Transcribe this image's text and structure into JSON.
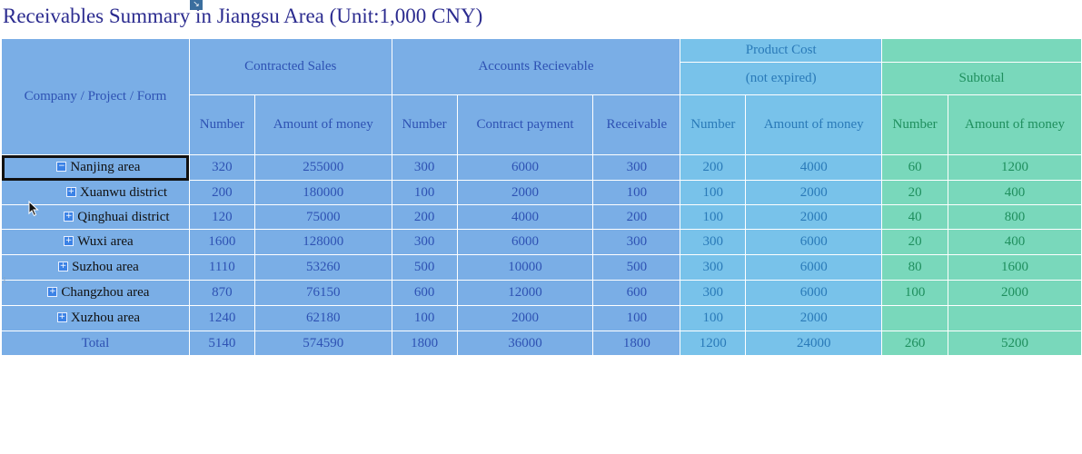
{
  "title": "Receivables Summary in Jiangsu Area (Unit:1,000 CNY)",
  "icons": {
    "title_icon": "resize-corner-icon",
    "toggle_expanded": "minus-box-icon",
    "toggle_collapsed": "plus-box-icon",
    "cursor": "mouse-pointer-icon"
  },
  "colors": {
    "title": "#2b2b8f",
    "blue_header": "#7aaee6",
    "cyan_header": "#78c2ea",
    "green_header": "#79d8bb"
  },
  "header": {
    "company": "Company / Project / Form",
    "contracted_sales": "Contracted Sales",
    "accounts_receivable": "Accounts Recievable",
    "product_cost": "Product Cost",
    "not_expired": "(not expired)",
    "subtotal": "Subtotal",
    "sub": {
      "cs_number": "Number",
      "cs_amount": "Amount of money",
      "ar_number": "Number",
      "ar_contract": "Contract payment",
      "ar_receivable": "Receivable",
      "pc_number": "Number",
      "pc_amount": "Amount of money",
      "st_number": "Number",
      "st_amount": "Amount of money"
    }
  },
  "rows": [
    {
      "name": "Nanjing area",
      "toggle": "−",
      "cs_number": "320",
      "cs_amount": "255000",
      "ar_number": "300",
      "ar_contract": "6000",
      "ar_receivable": "300",
      "pc_number": "200",
      "pc_amount": "4000",
      "st_number": "60",
      "st_amount": "1200"
    },
    {
      "name": "Xuanwu district",
      "toggle": "+",
      "cs_number": "200",
      "cs_amount": "180000",
      "ar_number": "100",
      "ar_contract": "2000",
      "ar_receivable": "100",
      "pc_number": "100",
      "pc_amount": "2000",
      "st_number": "20",
      "st_amount": "400"
    },
    {
      "name": "Qinghuai district",
      "toggle": "+",
      "cs_number": "120",
      "cs_amount": "75000",
      "ar_number": "200",
      "ar_contract": "4000",
      "ar_receivable": "200",
      "pc_number": "100",
      "pc_amount": "2000",
      "st_number": "40",
      "st_amount": "800"
    },
    {
      "name": "Wuxi area",
      "toggle": "+",
      "cs_number": "1600",
      "cs_amount": "128000",
      "ar_number": "300",
      "ar_contract": "6000",
      "ar_receivable": "300",
      "pc_number": "300",
      "pc_amount": "6000",
      "st_number": "20",
      "st_amount": "400"
    },
    {
      "name": "Suzhou area",
      "toggle": "+",
      "cs_number": "1110",
      "cs_amount": "53260",
      "ar_number": "500",
      "ar_contract": "10000",
      "ar_receivable": "500",
      "pc_number": "300",
      "pc_amount": "6000",
      "st_number": "80",
      "st_amount": "1600"
    },
    {
      "name": "Changzhou area",
      "toggle": "+",
      "cs_number": "870",
      "cs_amount": "76150",
      "ar_number": "600",
      "ar_contract": "12000",
      "ar_receivable": "600",
      "pc_number": "300",
      "pc_amount": "6000",
      "st_number": "100",
      "st_amount": "2000"
    },
    {
      "name": "Xuzhou area",
      "toggle": "+",
      "cs_number": "1240",
      "cs_amount": "62180",
      "ar_number": "100",
      "ar_contract": "2000",
      "ar_receivable": "100",
      "pc_number": "100",
      "pc_amount": "2000",
      "st_number": "",
      "st_amount": ""
    }
  ],
  "total": {
    "label": "Total",
    "cs_number": "5140",
    "cs_amount": "574590",
    "ar_number": "1800",
    "ar_contract": "36000",
    "ar_receivable": "1800",
    "pc_number": "1200",
    "pc_amount": "24000",
    "st_number": "260",
    "st_amount": "5200"
  }
}
